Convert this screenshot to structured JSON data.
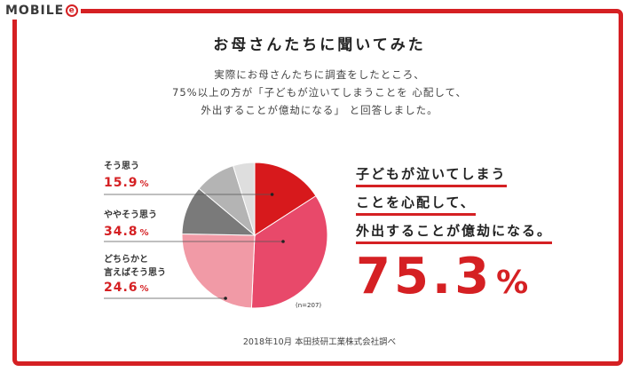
{
  "logo": {
    "text": "MOBILE",
    "mark": "e"
  },
  "title": "お母さんたちに聞いてみた",
  "intro": {
    "line1": "実際にお母さんたちに調査をしたところ、",
    "line2": "75%以上の方が「子どもが泣いてしまうことを 心配して、",
    "line3": "外出することが億劫になる」 と回答しました。"
  },
  "chart_data": {
    "type": "pie",
    "start_angle_deg": 0,
    "direction": "clockwise",
    "slices": [
      {
        "label": "そう思う",
        "value": 15.9,
        "color": "#d7191c"
      },
      {
        "label": "ややそう思う",
        "value": 34.8,
        "color": "#e8496a"
      },
      {
        "label": "どちらかと言えばそう思う",
        "value": 24.6,
        "color": "#f19aa6"
      },
      {
        "label": "",
        "value": 10.8,
        "color": "#7a7a7a"
      },
      {
        "label": "",
        "value": 9.1,
        "color": "#b4b4b4"
      },
      {
        "label": "",
        "value": 4.8,
        "color": "#dedede"
      }
    ],
    "legend": [
      {
        "line1": "そう思う",
        "line2": "",
        "value": "15.9",
        "unit": "%"
      },
      {
        "line1": "ややそう思う",
        "line2": "",
        "value": "34.8",
        "unit": "%"
      },
      {
        "line1": "どちらかと",
        "line2": "言えばそう思う",
        "value": "24.6",
        "unit": "%"
      }
    ],
    "note": "(n=207)"
  },
  "source": "2018年10月 本田技研工業株式会社調べ",
  "headline": {
    "line1": "子どもが泣いてしまう",
    "line2": "ことを心配して、",
    "line3": "外出することが億劫になる。"
  },
  "big_stat": {
    "value": "75.3",
    "unit": "%"
  },
  "colors": {
    "accent": "#d52023"
  }
}
